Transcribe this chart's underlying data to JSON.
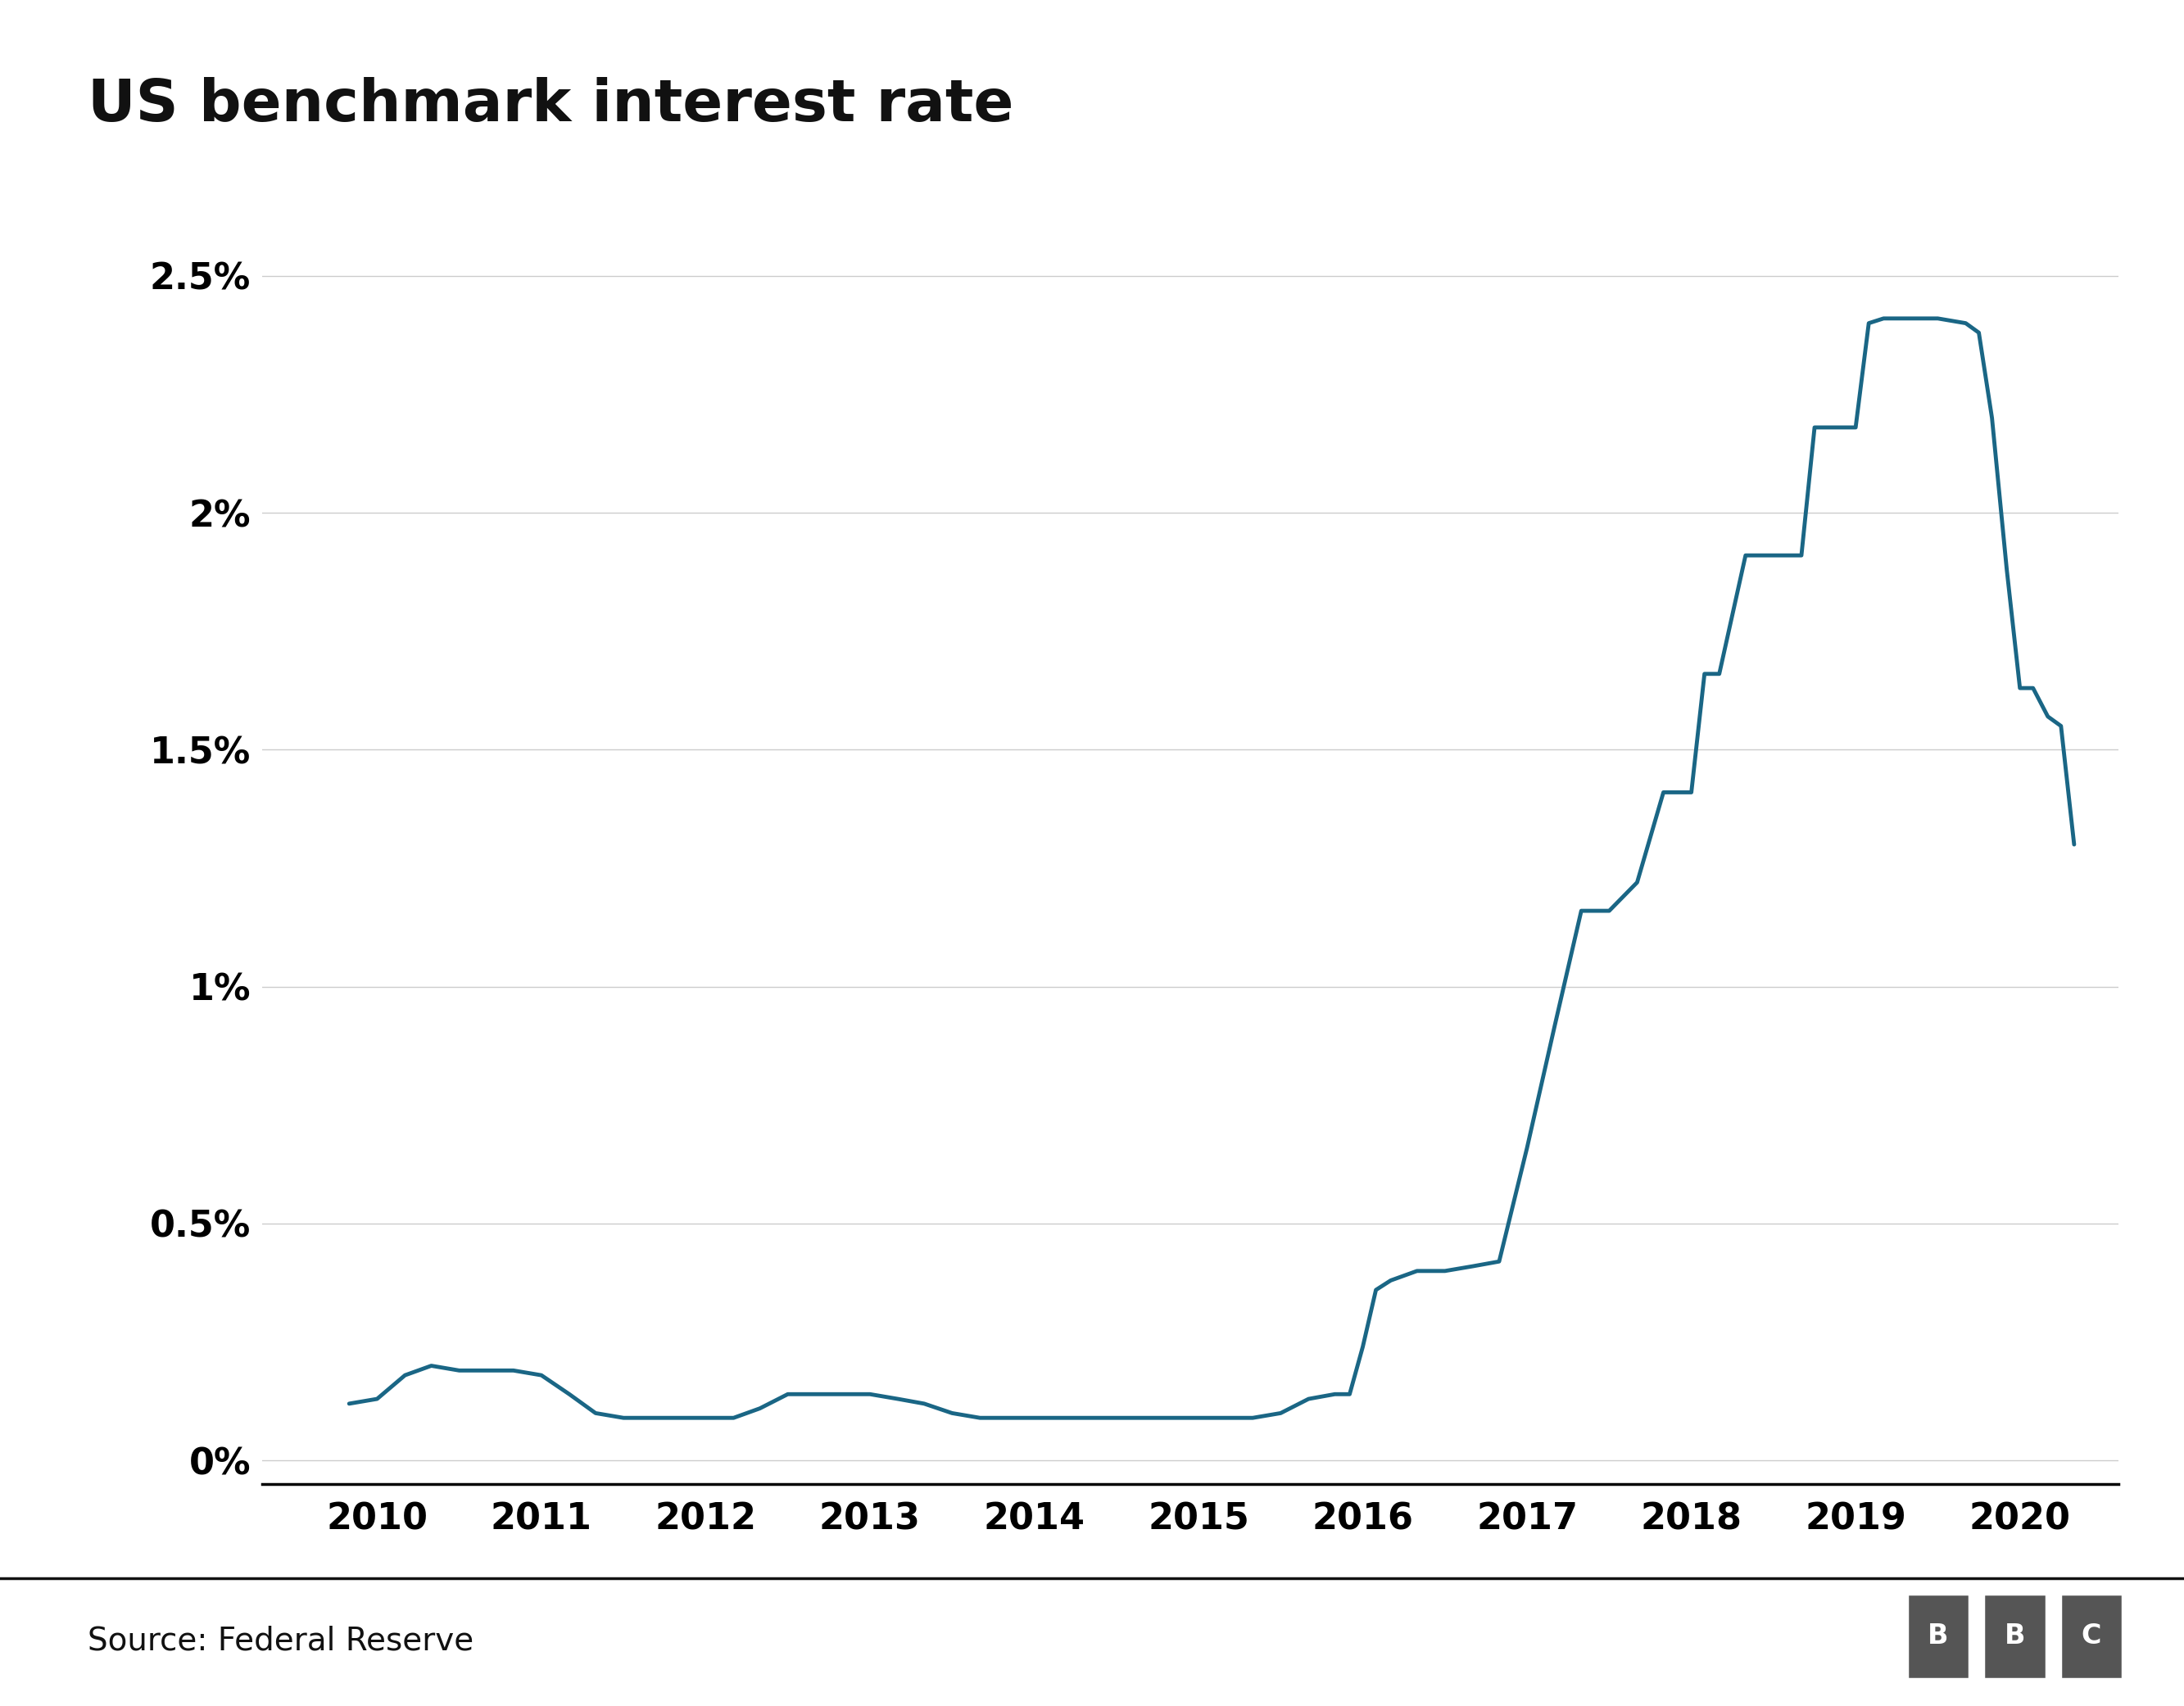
{
  "title": "US benchmark interest rate",
  "source_text": "Source: Federal Reserve",
  "line_color": "#1a6685",
  "background_color": "#ffffff",
  "title_fontsize": 52,
  "tick_fontsize": 32,
  "source_fontsize": 28,
  "yticks": [
    0,
    0.5,
    1.0,
    1.5,
    2.0,
    2.5
  ],
  "ytick_labels": [
    "0%",
    "0.5%",
    "1%",
    "1.5%",
    "2%",
    "2.5%"
  ],
  "ylim": [
    -0.05,
    2.65
  ],
  "xticks": [
    2010,
    2011,
    2012,
    2013,
    2014,
    2015,
    2016,
    2017,
    2018,
    2019,
    2020
  ],
  "xlim": [
    2009.3,
    2020.6
  ],
  "grid_color": "#cccccc",
  "zero_line_color": "#000000",
  "dates": [
    2009.83,
    2010.0,
    2010.17,
    2010.33,
    2010.5,
    2010.67,
    2010.83,
    2011.0,
    2011.17,
    2011.33,
    2011.5,
    2011.67,
    2011.83,
    2012.0,
    2012.17,
    2012.33,
    2012.5,
    2012.67,
    2012.83,
    2013.0,
    2013.17,
    2013.33,
    2013.5,
    2013.67,
    2013.83,
    2014.0,
    2014.17,
    2014.33,
    2014.5,
    2014.67,
    2014.83,
    2015.0,
    2015.17,
    2015.33,
    2015.5,
    2015.67,
    2015.83,
    2015.92,
    2016.0,
    2016.08,
    2016.17,
    2016.33,
    2016.5,
    2016.67,
    2016.83,
    2017.0,
    2017.17,
    2017.33,
    2017.5,
    2017.67,
    2017.83,
    2018.0,
    2018.08,
    2018.17,
    2018.33,
    2018.5,
    2018.67,
    2018.75,
    2018.83,
    2019.0,
    2019.08,
    2019.17,
    2019.33,
    2019.42,
    2019.5,
    2019.67,
    2019.75,
    2019.83,
    2019.92,
    2020.0,
    2020.08,
    2020.17,
    2020.25,
    2020.33
  ],
  "values": [
    0.12,
    0.13,
    0.18,
    0.2,
    0.19,
    0.19,
    0.19,
    0.18,
    0.14,
    0.1,
    0.09,
    0.09,
    0.09,
    0.09,
    0.09,
    0.11,
    0.14,
    0.14,
    0.14,
    0.14,
    0.13,
    0.12,
    0.1,
    0.09,
    0.09,
    0.09,
    0.09,
    0.09,
    0.09,
    0.09,
    0.09,
    0.09,
    0.09,
    0.09,
    0.1,
    0.13,
    0.14,
    0.14,
    0.24,
    0.36,
    0.38,
    0.4,
    0.4,
    0.41,
    0.42,
    0.66,
    0.92,
    1.16,
    1.16,
    1.22,
    1.41,
    1.41,
    1.66,
    1.66,
    1.91,
    1.91,
    1.91,
    2.18,
    2.18,
    2.18,
    2.4,
    2.41,
    2.41,
    2.41,
    2.41,
    2.4,
    2.38,
    2.2,
    1.88,
    1.63,
    1.63,
    1.57,
    1.55,
    1.3
  ]
}
